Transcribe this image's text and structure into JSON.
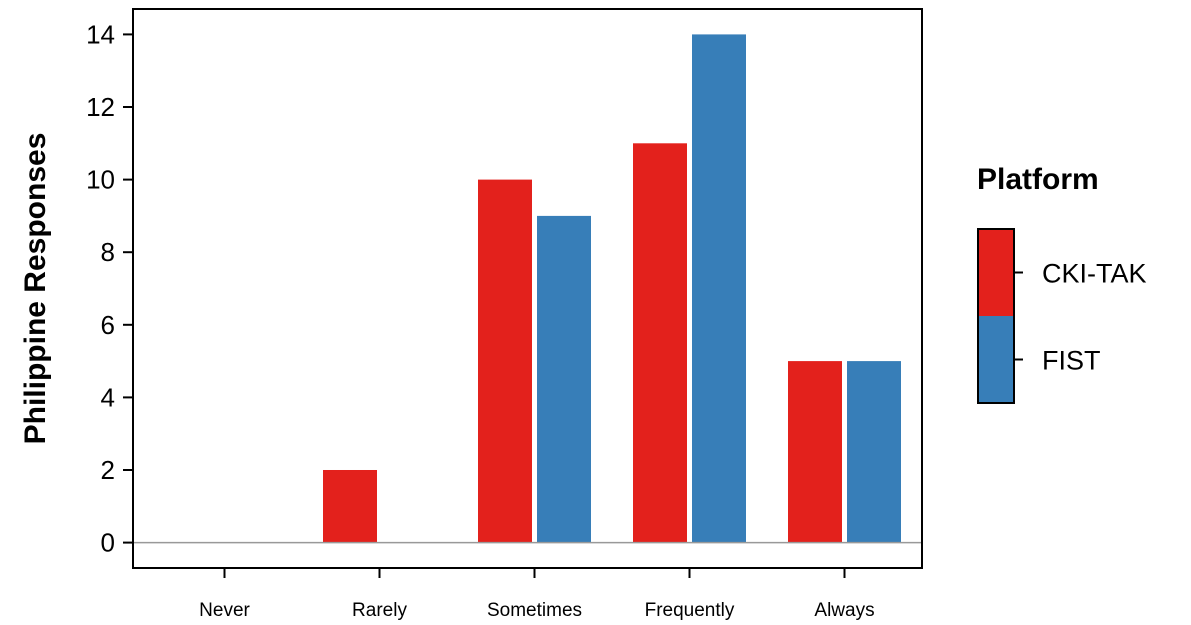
{
  "chart_data": {
    "type": "bar",
    "categories": [
      "Never",
      "Rarely",
      "Sometimes",
      "Frequently",
      "Always"
    ],
    "series": [
      {
        "name": "CKI-TAK",
        "values": [
          0,
          2,
          10,
          11,
          5
        ],
        "color": "#e3211c"
      },
      {
        "name": "FIST",
        "values": [
          0,
          0,
          9,
          14,
          5
        ],
        "color": "#377eb8"
      }
    ],
    "title": "",
    "xlabel": "",
    "ylabel": "Philippine Responses",
    "ylim": [
      -0.7,
      14.7
    ],
    "yticks": [
      0,
      2,
      4,
      6,
      8,
      10,
      12,
      14
    ],
    "baseline": 0,
    "baseline_color": "#999999",
    "grid": false,
    "legend": {
      "title": "Platform",
      "position": "right"
    }
  }
}
